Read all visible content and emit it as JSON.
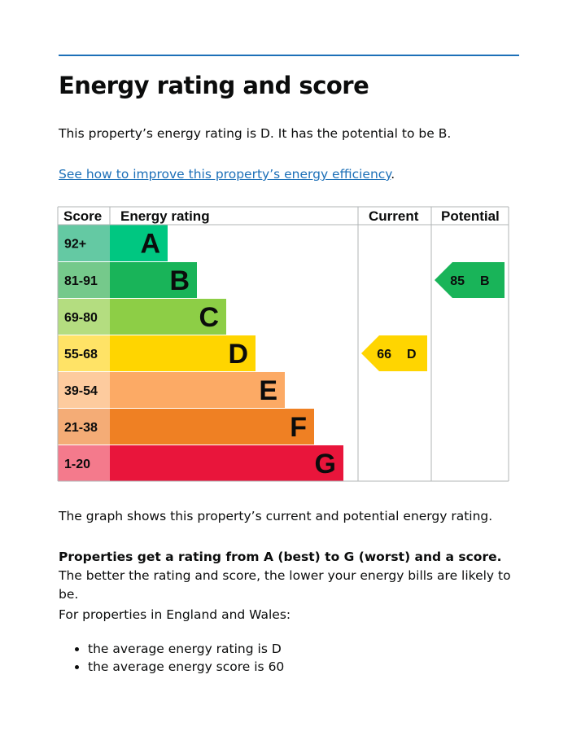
{
  "heading": "Energy rating and score",
  "intro": "This property’s energy rating is D. It has the potential to be B.",
  "link": {
    "text": "See how to improve this property’s energy efficiency",
    "after": "."
  },
  "chart": {
    "headers": [
      "Score",
      "Energy rating",
      "Current",
      "Potential"
    ],
    "bands": [
      {
        "score": "92+",
        "letter": "A",
        "color": "#00c781",
        "score_color": "#64c9a3"
      },
      {
        "score": "81-91",
        "letter": "B",
        "color": "#19b459",
        "score_color": "#75c98b"
      },
      {
        "score": "69-80",
        "letter": "C",
        "color": "#8dce46",
        "score_color": "#b4dd80"
      },
      {
        "score": "55-68",
        "letter": "D",
        "color": "#ffd500",
        "score_color": "#ffe366"
      },
      {
        "score": "39-54",
        "letter": "E",
        "color": "#fcaa65",
        "score_color": "#fdcb9e"
      },
      {
        "score": "21-38",
        "letter": "F",
        "color": "#ef8023",
        "score_color": "#f4ac76"
      },
      {
        "score": "1-20",
        "letter": "G",
        "color": "#e9153b",
        "score_color": "#f47a8c"
      }
    ],
    "current": {
      "score": 66,
      "letter": "D"
    },
    "potential": {
      "score": 85,
      "letter": "B"
    }
  },
  "paragraphs": [
    {
      "text": "The graph shows this property’s current and potential energy rating."
    },
    {
      "bold": "Properties get a rating from A (best) to G (worst) and a score.",
      "text": " The better the rating and score, the lower your energy bills are likely to be."
    },
    {
      "text": "For properties in England and Wales:"
    }
  ],
  "list": [
    "the average energy rating is D",
    "the average energy score is 60"
  ]
}
